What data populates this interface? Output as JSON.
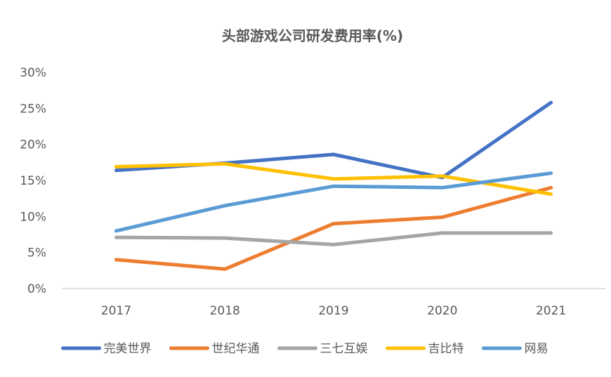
{
  "chart_data": {
    "type": "line",
    "title": "头部游戏公司研发费用率(%)",
    "xlabel": "",
    "ylabel": "",
    "categories": [
      "2017",
      "2018",
      "2019",
      "2020",
      "2021"
    ],
    "ylim": [
      0,
      30
    ],
    "yticks": [
      0,
      5,
      10,
      15,
      20,
      25,
      30
    ],
    "ytick_labels": [
      "0%",
      "5%",
      "10%",
      "15%",
      "20%",
      "25%",
      "30%"
    ],
    "grid": false,
    "legend_position": "bottom",
    "series": [
      {
        "name": "完美世界",
        "color": "#4472C4",
        "values": [
          16.4,
          17.4,
          18.6,
          15.4,
          25.8
        ]
      },
      {
        "name": "世纪华通",
        "color": "#ED7D31",
        "values": [
          4.0,
          2.7,
          9.0,
          9.9,
          14.0
        ]
      },
      {
        "name": "三七互娱",
        "color": "#A5A5A5",
        "values": [
          7.1,
          7.0,
          6.1,
          7.7,
          7.7
        ]
      },
      {
        "name": "吉比特",
        "color": "#FFC000",
        "values": [
          16.9,
          17.3,
          15.2,
          15.6,
          13.1
        ]
      },
      {
        "name": "网易",
        "color": "#5B9BD5",
        "values": [
          8.0,
          11.5,
          14.2,
          14.0,
          16.0
        ]
      }
    ]
  }
}
